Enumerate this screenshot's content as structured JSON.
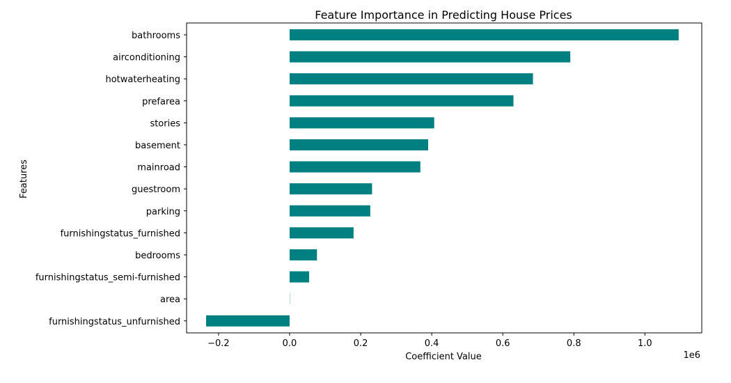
{
  "chart_data": {
    "type": "bar",
    "orientation": "horizontal",
    "title": "Feature Importance in Predicting House Prices",
    "xlabel": "Coefficient Value",
    "ylabel": "Features",
    "x_offset_text": "1e6",
    "xlim": [
      -0.29,
      1.16
    ],
    "xticks": [
      -0.2,
      0.0,
      0.2,
      0.4,
      0.6,
      0.8,
      1.0
    ],
    "xtick_labels": [
      "−0.2",
      "0.0",
      "0.2",
      "0.4",
      "0.6",
      "0.8",
      "1.0"
    ],
    "categories": [
      "bathrooms",
      "airconditioning",
      "hotwaterheating",
      "prefarea",
      "stories",
      "basement",
      "mainroad",
      "guestroom",
      "parking",
      "furnishingstatus_furnished",
      "bedrooms",
      "furnishingstatus_semi-furnished",
      "area",
      "furnishingstatus_unfurnished"
    ],
    "values": [
      1.095,
      0.79,
      0.685,
      0.63,
      0.407,
      0.39,
      0.368,
      0.232,
      0.227,
      0.18,
      0.077,
      0.055,
      0.0002,
      -0.235
    ],
    "bar_color": "#008080",
    "grid": false
  }
}
